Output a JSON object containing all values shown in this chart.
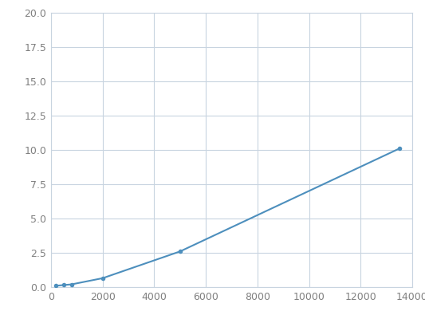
{
  "x": [
    200,
    500,
    800,
    2000,
    5000,
    13500
  ],
  "y": [
    0.1,
    0.15,
    0.2,
    0.65,
    2.6,
    10.1
  ],
  "line_color": "#4d8fbd",
  "marker_color": "#4d8fbd",
  "marker_size": 4,
  "line_width": 1.5,
  "xlim": [
    0,
    14000
  ],
  "ylim": [
    0,
    20.0
  ],
  "yticks": [
    0.0,
    2.5,
    5.0,
    7.5,
    10.0,
    12.5,
    15.0,
    17.5,
    20.0
  ],
  "xticks": [
    0,
    2000,
    4000,
    6000,
    8000,
    10000,
    12000,
    14000
  ],
  "background_color": "#ffffff",
  "grid_color": "#c8d4e0",
  "spine_color": "#c8d4e0",
  "tick_label_color": "#808080",
  "tick_label_size": 9
}
